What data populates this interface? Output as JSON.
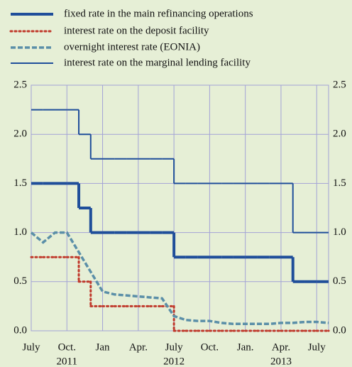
{
  "chart_data": {
    "type": "line",
    "x": [
      "2011-07",
      "2011-08",
      "2011-09",
      "2011-10",
      "2011-11",
      "2011-12",
      "2012-01",
      "2012-02",
      "2012-03",
      "2012-04",
      "2012-05",
      "2012-06",
      "2012-07",
      "2012-08",
      "2012-09",
      "2012-10",
      "2012-11",
      "2012-12",
      "2013-01",
      "2013-02",
      "2013-03",
      "2013-04",
      "2013-05",
      "2013-06",
      "2013-07",
      "2013-08"
    ],
    "series": [
      {
        "name": "fixed rate in the main refinancing operations",
        "color": "#1f4e9a",
        "drawstyle": "steps-post",
        "linestyle": "solid",
        "linewidth": 4,
        "values": [
          1.5,
          1.5,
          1.5,
          1.5,
          1.25,
          1.0,
          1.0,
          1.0,
          1.0,
          1.0,
          1.0,
          1.0,
          0.75,
          0.75,
          0.75,
          0.75,
          0.75,
          0.75,
          0.75,
          0.75,
          0.75,
          0.75,
          0.5,
          0.5,
          0.5,
          0.5
        ]
      },
      {
        "name": "interest rate on the deposit facility",
        "color": "#c0392b",
        "drawstyle": "steps-post",
        "linestyle": "dotted",
        "linewidth": 3,
        "values": [
          0.75,
          0.75,
          0.75,
          0.75,
          0.5,
          0.25,
          0.25,
          0.25,
          0.25,
          0.25,
          0.25,
          0.25,
          0,
          0,
          0,
          0,
          0,
          0,
          0,
          0,
          0,
          0,
          0,
          0,
          0,
          0
        ]
      },
      {
        "name": "overnight interest rate (EONIA)",
        "color": "#5b8fa8",
        "drawstyle": "default",
        "linestyle": "dashed",
        "linewidth": 3.5,
        "values": [
          1.0,
          0.9,
          1.0,
          1.0,
          0.8,
          0.6,
          0.4,
          0.37,
          0.36,
          0.35,
          0.34,
          0.33,
          0.15,
          0.11,
          0.1,
          0.1,
          0.08,
          0.07,
          0.07,
          0.07,
          0.07,
          0.08,
          0.08,
          0.09,
          0.09,
          0.08
        ]
      },
      {
        "name": "interest rate on the marginal lending facility",
        "color": "#1f4e9a",
        "drawstyle": "steps-post",
        "linestyle": "solid",
        "linewidth": 2,
        "values": [
          2.25,
          2.25,
          2.25,
          2.25,
          2.0,
          1.75,
          1.75,
          1.75,
          1.75,
          1.75,
          1.75,
          1.75,
          1.5,
          1.5,
          1.5,
          1.5,
          1.5,
          1.5,
          1.5,
          1.5,
          1.5,
          1.5,
          1.0,
          1.0,
          1.0,
          1.0
        ]
      }
    ],
    "xlim": [
      "2011-07",
      "2013-08"
    ],
    "xticks": [
      {
        "value": "2011-07",
        "label": "July"
      },
      {
        "value": "2011-10",
        "label": "Oct."
      },
      {
        "value": "2012-01",
        "label": "Jan"
      },
      {
        "value": "2012-04",
        "label": "Apr."
      },
      {
        "value": "2012-07",
        "label": "July"
      },
      {
        "value": "2012-10",
        "label": "Oct."
      },
      {
        "value": "2013-01",
        "label": "Jan."
      },
      {
        "value": "2013-04",
        "label": "Apr."
      },
      {
        "value": "2013-07",
        "label": "July"
      }
    ],
    "x_year_labels": [
      {
        "value": "2011-10",
        "label": "2011"
      },
      {
        "value": "2012-07",
        "label": "2012"
      },
      {
        "value": "2013-04",
        "label": "2013"
      }
    ],
    "ylim": [
      0,
      2.5
    ],
    "yticks": [
      {
        "value": 0,
        "label": "0.0"
      },
      0.5,
      {
        "value": 1,
        "label": "1.0"
      },
      1.5,
      {
        "value": 2,
        "label": "2.0"
      },
      2.5
    ],
    "grid": true,
    "y_labels_both_sides": true,
    "legend": "top"
  }
}
